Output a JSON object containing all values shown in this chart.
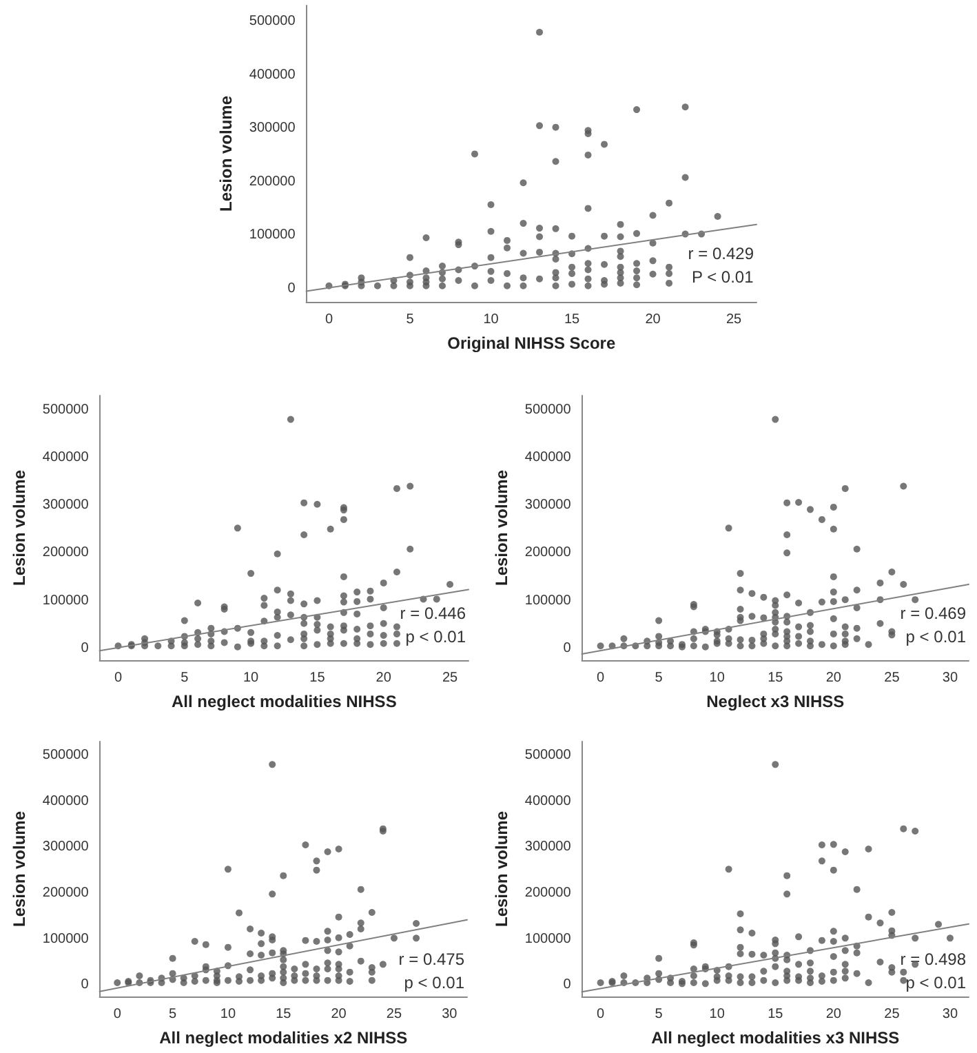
{
  "chart_data": [
    {
      "type": "scatter",
      "xlabel": "Original NIHSS Score",
      "ylabel": "Lesion volume",
      "xlim": [
        -1.4,
        26.4
      ],
      "xticks": [
        0,
        5,
        10,
        15,
        20,
        25
      ],
      "ylim": [
        -25000,
        530000
      ],
      "yticks": [
        0,
        100000,
        200000,
        300000,
        400000,
        500000
      ],
      "grid": false,
      "marker": "circle",
      "annotations": [
        "r = 0.429",
        "P < 0.01"
      ],
      "series": [
        {
          "type": "scatter",
          "color": "#555555",
          "x": [
            0,
            1,
            1,
            2,
            2,
            2,
            3,
            4,
            4,
            5,
            5,
            5,
            5,
            6,
            6,
            6,
            6,
            6,
            7,
            7,
            7,
            7,
            8,
            8,
            8,
            8,
            9,
            9,
            9,
            10,
            10,
            10,
            10,
            10,
            11,
            11,
            11,
            11,
            12,
            12,
            12,
            12,
            12,
            13,
            13,
            13,
            13,
            13,
            13,
            14,
            14,
            14,
            14,
            14,
            14,
            14,
            14,
            15,
            15,
            15,
            15,
            15,
            16,
            16,
            16,
            16,
            16,
            16,
            16,
            16,
            16,
            17,
            17,
            17,
            17,
            17,
            18,
            18,
            18,
            18,
            18,
            18,
            18,
            18,
            19,
            19,
            19,
            19,
            19,
            19,
            20,
            20,
            20,
            20,
            21,
            21,
            21,
            21,
            22,
            22,
            22,
            23,
            24
          ],
          "values": [
            5000,
            5000,
            8000,
            20000,
            12000,
            5000,
            5000,
            15000,
            5000,
            58000,
            25000,
            12000,
            5000,
            95000,
            33000,
            20000,
            12000,
            5000,
            42000,
            30000,
            18000,
            5000,
            87000,
            82000,
            35000,
            15000,
            252000,
            42000,
            5000,
            157000,
            107000,
            58000,
            32000,
            15000,
            90000,
            76000,
            28000,
            5000,
            198000,
            122000,
            66000,
            20000,
            5000,
            480000,
            305000,
            113000,
            97000,
            68000,
            18000,
            302000,
            238000,
            112000,
            66000,
            55000,
            30000,
            20000,
            5000,
            98000,
            65000,
            40000,
            28000,
            8000,
            296000,
            290000,
            250000,
            150000,
            75000,
            47000,
            35000,
            18000,
            5000,
            270000,
            98000,
            45000,
            15000,
            8000,
            120000,
            97000,
            70000,
            60000,
            40000,
            30000,
            20000,
            10000,
            335000,
            103000,
            47000,
            33000,
            20000,
            7000,
            137000,
            85000,
            52000,
            27000,
            160000,
            40000,
            28000,
            10000,
            340000,
            208000,
            102000,
            102000,
            135000
          ]
        },
        {
          "type": "line",
          "color": "#808080",
          "marker": "none",
          "line_style": "solid",
          "x": [
            -1.4,
            26.4
          ],
          "values": [
            -5000,
            120000
          ]
        }
      ]
    },
    {
      "type": "scatter",
      "xlabel": "All neglect modalities NIHSS",
      "ylabel": "Lesion volume",
      "xlim": [
        -1.4,
        26.4
      ],
      "xticks": [
        0,
        5,
        10,
        15,
        20,
        25
      ],
      "ylim": [
        -25000,
        530000
      ],
      "yticks": [
        0,
        100000,
        200000,
        300000,
        400000,
        500000
      ],
      "grid": false,
      "marker": "circle",
      "annotations": [
        "r = 0.446",
        "p < 0.01"
      ],
      "series": [
        {
          "type": "scatter",
          "color": "#555555",
          "x": [
            0,
            1,
            1,
            2,
            2,
            2,
            3,
            4,
            4,
            5,
            5,
            5,
            5,
            6,
            6,
            6,
            6,
            7,
            7,
            7,
            7,
            8,
            8,
            8,
            8,
            9,
            9,
            9,
            10,
            10,
            10,
            10,
            11,
            11,
            11,
            11,
            11,
            12,
            12,
            12,
            12,
            12,
            12,
            13,
            13,
            13,
            13,
            13,
            14,
            14,
            14,
            14,
            14,
            14,
            14,
            14,
            15,
            15,
            15,
            15,
            15,
            15,
            16,
            16,
            16,
            16,
            16,
            17,
            17,
            17,
            17,
            17,
            17,
            17,
            17,
            17,
            17,
            18,
            18,
            18,
            18,
            18,
            18,
            19,
            19,
            19,
            19,
            19,
            20,
            20,
            20,
            20,
            20,
            21,
            21,
            21,
            21,
            21,
            22,
            22,
            23,
            24,
            25
          ],
          "values": [
            5000,
            5000,
            8000,
            20000,
            12000,
            5000,
            5000,
            15000,
            5000,
            58000,
            25000,
            12000,
            5000,
            95000,
            33000,
            20000,
            8000,
            42000,
            30000,
            15000,
            5000,
            87000,
            82000,
            35000,
            12000,
            252000,
            42000,
            3000,
            157000,
            33000,
            15000,
            10000,
            105000,
            90000,
            57000,
            15000,
            5000,
            198000,
            122000,
            76000,
            65000,
            27000,
            5000,
            480000,
            114000,
            100000,
            70000,
            18000,
            305000,
            238000,
            93000,
            65000,
            52000,
            30000,
            20000,
            5000,
            302000,
            100000,
            65000,
            50000,
            38000,
            8000,
            250000,
            45000,
            30000,
            20000,
            10000,
            295000,
            290000,
            270000,
            150000,
            110000,
            97000,
            75000,
            47000,
            38000,
            10000,
            118000,
            98000,
            72000,
            40000,
            20000,
            10000,
            120000,
            103000,
            47000,
            30000,
            8000,
            137000,
            85000,
            52000,
            27000,
            10000,
            335000,
            160000,
            45000,
            30000,
            10000,
            340000,
            208000,
            103000,
            103000,
            134000
          ]
        },
        {
          "type": "line",
          "color": "#808080",
          "marker": "none",
          "line_style": "solid",
          "x": [
            -1.4,
            26.4
          ],
          "values": [
            -5000,
            123000
          ]
        }
      ]
    },
    {
      "type": "scatter",
      "xlabel": "Neglect x3 NIHSS",
      "ylabel": "Lesion volume",
      "xlim": [
        -1.6,
        31.6
      ],
      "xticks": [
        0,
        5,
        10,
        15,
        20,
        25,
        30
      ],
      "ylim": [
        -25000,
        530000
      ],
      "yticks": [
        0,
        100000,
        200000,
        300000,
        400000,
        500000
      ],
      "grid": false,
      "marker": "circle",
      "annotations": [
        "r = 0.469",
        "p < 0.01"
      ],
      "series": [
        {
          "type": "scatter",
          "color": "#555555",
          "x": [
            0,
            1,
            2,
            2,
            3,
            4,
            4,
            5,
            5,
            5,
            5,
            6,
            6,
            7,
            7,
            8,
            8,
            8,
            8,
            8,
            9,
            9,
            9,
            10,
            10,
            10,
            10,
            11,
            11,
            11,
            11,
            12,
            12,
            12,
            12,
            12,
            12,
            12,
            13,
            13,
            13,
            13,
            14,
            14,
            14,
            14,
            14,
            15,
            15,
            15,
            15,
            15,
            15,
            15,
            15,
            15,
            16,
            16,
            16,
            16,
            16,
            16,
            16,
            16,
            16,
            16,
            17,
            17,
            17,
            17,
            17,
            18,
            18,
            18,
            18,
            18,
            18,
            19,
            19,
            19,
            20,
            20,
            20,
            20,
            20,
            20,
            20,
            20,
            21,
            21,
            21,
            21,
            21,
            21,
            22,
            22,
            22,
            22,
            22,
            23,
            24,
            24,
            24,
            25,
            25,
            25,
            26,
            26,
            27
          ],
          "values": [
            5000,
            5000,
            20000,
            5000,
            5000,
            15000,
            5000,
            58000,
            25000,
            12000,
            5000,
            15000,
            5000,
            8000,
            3000,
            92000,
            87000,
            35000,
            20000,
            5000,
            40000,
            35000,
            3000,
            35000,
            28000,
            15000,
            10000,
            252000,
            40000,
            20000,
            10000,
            157000,
            122000,
            82000,
            65000,
            58000,
            18000,
            5000,
            115000,
            67000,
            17000,
            5000,
            107000,
            64000,
            30000,
            20000,
            10000,
            480000,
            100000,
            90000,
            75000,
            65000,
            55000,
            40000,
            30000,
            5000,
            305000,
            238000,
            200000,
            112000,
            67000,
            55000,
            35000,
            25000,
            15000,
            5000,
            306000,
            95000,
            45000,
            25000,
            10000,
            291000,
            75000,
            48000,
            35000,
            15000,
            5000,
            270000,
            97000,
            8000,
            296000,
            250000,
            150000,
            118000,
            98000,
            62000,
            30000,
            5000,
            335000,
            102000,
            45000,
            30000,
            15000,
            8000,
            208000,
            122000,
            85000,
            42000,
            20000,
            8000,
            137000,
            102000,
            52000,
            160000,
            35000,
            28000,
            340000,
            134000,
            102000
          ]
        },
        {
          "type": "line",
          "color": "#808080",
          "marker": "none",
          "line_style": "solid",
          "x": [
            -1.6,
            31.6
          ],
          "values": [
            -12000,
            134000
          ]
        }
      ]
    },
    {
      "type": "scatter",
      "xlabel": "All neglect modalities x2 NIHSS",
      "ylabel": "Lesion volume",
      "xlim": [
        -1.6,
        31.6
      ],
      "xticks": [
        0,
        5,
        10,
        15,
        20,
        25,
        30
      ],
      "ylim": [
        -25000,
        530000
      ],
      "yticks": [
        0,
        100000,
        200000,
        300000,
        400000,
        500000
      ],
      "grid": false,
      "marker": "circle",
      "annotations": [
        "r = 0.475",
        "p < 0.01"
      ],
      "series": [
        {
          "type": "scatter",
          "color": "#555555",
          "x": [
            0,
            1,
            1,
            2,
            2,
            3,
            3,
            4,
            4,
            5,
            5,
            5,
            6,
            6,
            7,
            7,
            7,
            8,
            8,
            8,
            8,
            9,
            9,
            9,
            9,
            10,
            10,
            10,
            10,
            11,
            11,
            11,
            12,
            12,
            12,
            12,
            13,
            13,
            13,
            13,
            13,
            14,
            14,
            14,
            14,
            14,
            14,
            14,
            15,
            15,
            15,
            15,
            15,
            15,
            15,
            15,
            16,
            16,
            16,
            17,
            17,
            17,
            17,
            17,
            18,
            18,
            18,
            18,
            18,
            18,
            19,
            19,
            19,
            19,
            19,
            19,
            19,
            20,
            20,
            20,
            20,
            20,
            20,
            20,
            20,
            21,
            21,
            21,
            21,
            22,
            22,
            22,
            22,
            23,
            23,
            23,
            23,
            24,
            24,
            24,
            25,
            27,
            27
          ],
          "values": [
            5000,
            5000,
            8000,
            20000,
            5000,
            10000,
            5000,
            15000,
            5000,
            58000,
            25000,
            12000,
            15000,
            5000,
            95000,
            20000,
            8000,
            88000,
            40000,
            33000,
            10000,
            30000,
            20000,
            10000,
            5000,
            252000,
            82000,
            42000,
            10000,
            157000,
            18000,
            8000,
            122000,
            68000,
            33000,
            10000,
            113000,
            90000,
            65000,
            20000,
            10000,
            480000,
            198000,
            105000,
            98000,
            70000,
            25000,
            15000,
            238000,
            75000,
            68000,
            55000,
            40000,
            28000,
            15000,
            5000,
            35000,
            20000,
            10000,
            305000,
            97000,
            45000,
            25000,
            10000,
            270000,
            250000,
            95000,
            35000,
            20000,
            10000,
            290000,
            117000,
            98000,
            75000,
            48000,
            35000,
            10000,
            296000,
            148000,
            103000,
            72000,
            45000,
            35000,
            20000,
            10000,
            110000,
            85000,
            28000,
            8000,
            208000,
            135000,
            122000,
            52000,
            158000,
            38000,
            28000,
            10000,
            340000,
            335000,
            45000,
            102000,
            134000,
            102000
          ]
        },
        {
          "type": "line",
          "color": "#808080",
          "marker": "none",
          "line_style": "solid",
          "x": [
            -1.6,
            31.6
          ],
          "values": [
            -14000,
            142000
          ]
        }
      ]
    },
    {
      "type": "scatter",
      "xlabel": "All neglect modalities x3 NIHSS",
      "ylabel": "Lesion volume",
      "xlim": [
        -1.6,
        31.6
      ],
      "xticks": [
        0,
        5,
        10,
        15,
        20,
        25,
        30
      ],
      "ylim": [
        -25000,
        530000
      ],
      "yticks": [
        0,
        100000,
        200000,
        300000,
        400000,
        500000
      ],
      "grid": false,
      "marker": "circle",
      "annotations": [
        "r = 0.498",
        "p < 0.01"
      ],
      "series": [
        {
          "type": "scatter",
          "color": "#555555",
          "x": [
            0,
            1,
            1,
            2,
            2,
            3,
            4,
            4,
            5,
            5,
            5,
            6,
            6,
            7,
            7,
            8,
            8,
            8,
            8,
            8,
            9,
            9,
            9,
            10,
            10,
            10,
            11,
            11,
            11,
            11,
            12,
            12,
            12,
            12,
            12,
            12,
            13,
            13,
            13,
            13,
            14,
            14,
            14,
            15,
            15,
            15,
            15,
            15,
            15,
            15,
            16,
            16,
            16,
            16,
            16,
            16,
            16,
            17,
            17,
            17,
            17,
            18,
            18,
            18,
            18,
            18,
            19,
            19,
            19,
            19,
            19,
            20,
            20,
            20,
            20,
            20,
            20,
            20,
            21,
            21,
            21,
            21,
            21,
            21,
            22,
            22,
            22,
            22,
            23,
            23,
            23,
            24,
            24,
            25,
            25,
            25,
            25,
            25,
            26,
            26,
            26,
            27,
            27,
            27,
            29,
            30
          ],
          "values": [
            5000,
            5000,
            8000,
            20000,
            5000,
            5000,
            15000,
            5000,
            58000,
            25000,
            12000,
            15000,
            5000,
            8000,
            3000,
            92000,
            87000,
            35000,
            20000,
            5000,
            40000,
            35000,
            3000,
            32000,
            18000,
            10000,
            252000,
            40000,
            20000,
            10000,
            155000,
            120000,
            82000,
            68000,
            18000,
            5000,
            113000,
            67000,
            18000,
            5000,
            65000,
            30000,
            10000,
            480000,
            98000,
            90000,
            70000,
            58000,
            40000,
            5000,
            238000,
            198000,
            65000,
            55000,
            30000,
            20000,
            10000,
            105000,
            45000,
            18000,
            10000,
            75000,
            48000,
            30000,
            15000,
            5000,
            305000,
            270000,
            97000,
            20000,
            8000,
            306000,
            250000,
            117000,
            95000,
            62000,
            28000,
            10000,
            290000,
            102000,
            75000,
            45000,
            30000,
            15000,
            208000,
            85000,
            70000,
            25000,
            296000,
            148000,
            5000,
            135000,
            50000,
            158000,
            118000,
            108000,
            38000,
            28000,
            340000,
            28000,
            10000,
            335000,
            102000,
            45000,
            132000,
            102000
          ]
        },
        {
          "type": "line",
          "color": "#808080",
          "marker": "none",
          "line_style": "solid",
          "x": [
            -1.6,
            31.6
          ],
          "values": [
            -15000,
            133000
          ]
        }
      ]
    }
  ]
}
